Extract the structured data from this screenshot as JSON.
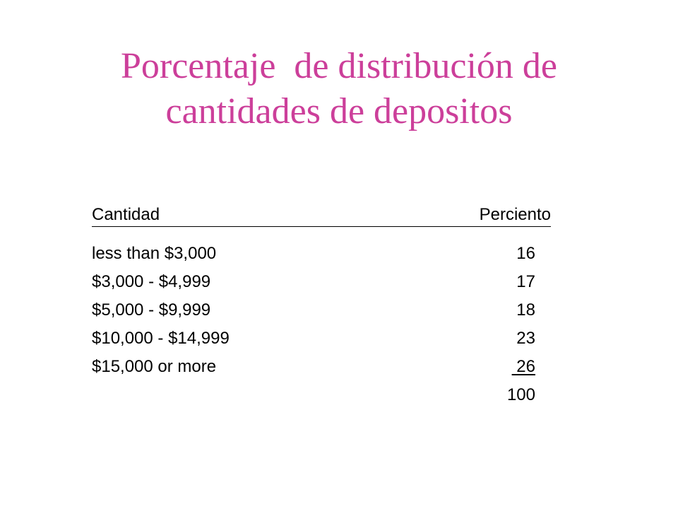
{
  "slide": {
    "title_line1": "Porcentaje  de distribución de",
    "title_line2": "cantidades de depositos",
    "title_color": "#cc3f9a"
  },
  "table": {
    "headers": {
      "amount": "Cantidad",
      "percent": "Perciento"
    },
    "rows": [
      {
        "amount": "less than $3,000",
        "percent": "16"
      },
      {
        "amount": "$3,000 - $4,999",
        "percent": "17"
      },
      {
        "amount": "$5,000 - $9,999",
        "percent": "18"
      },
      {
        "amount": "$10,000 - $14,999",
        "percent": "23"
      },
      {
        "amount": "$15,000 or more",
        "percent": " 26"
      }
    ],
    "total": "100"
  }
}
